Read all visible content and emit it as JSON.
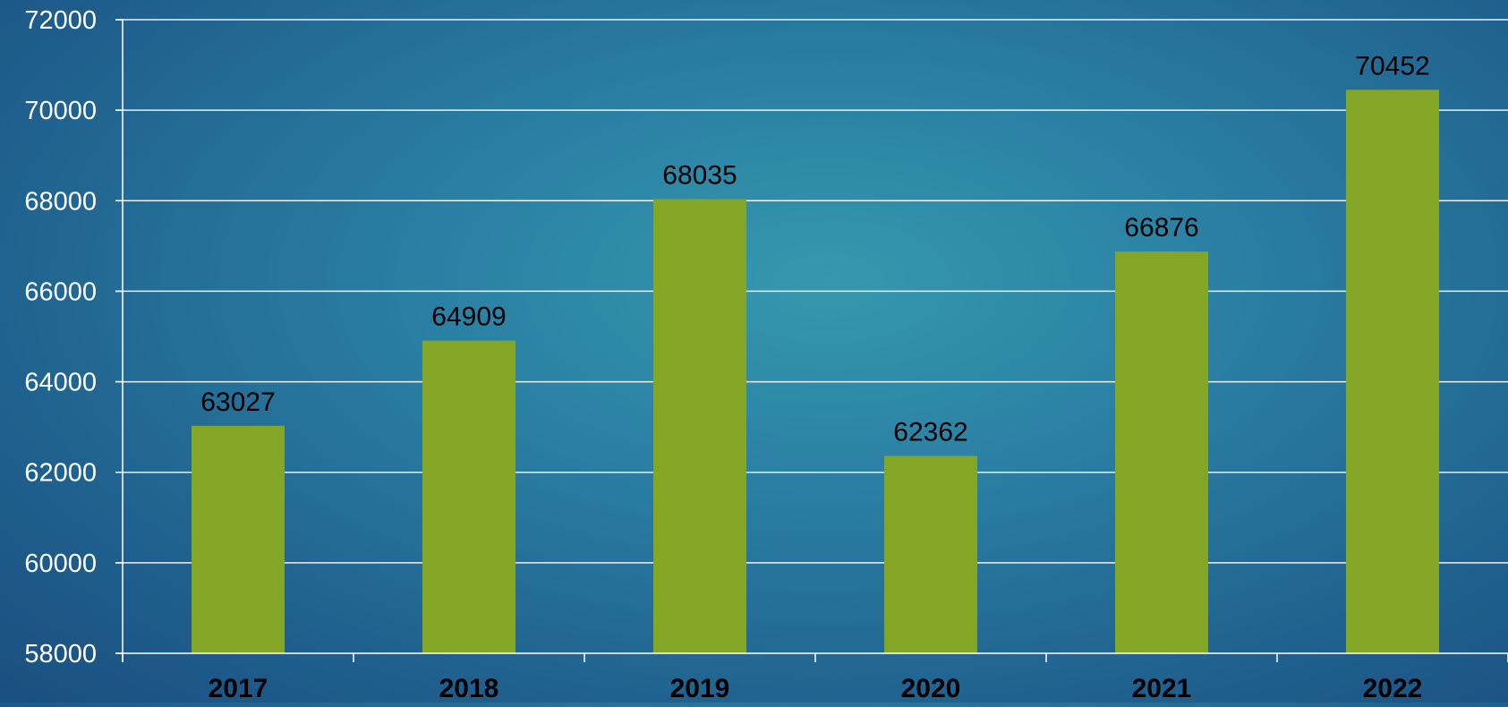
{
  "chart_data": {
    "type": "bar",
    "categories": [
      "2017",
      "2018",
      "2019",
      "2020",
      "2021",
      "2022"
    ],
    "values": [
      63027,
      64909,
      68035,
      62362,
      66876,
      70452
    ],
    "data_labels": [
      "63027",
      "64909",
      "68035",
      "62362",
      "66876",
      "70452"
    ],
    "title": "",
    "xlabel": "",
    "ylabel": "",
    "ylim": [
      58000,
      72000
    ],
    "yticks": [
      58000,
      60000,
      62000,
      64000,
      66000,
      68000,
      70000,
      72000
    ],
    "ytick_labels": [
      "58000",
      "60000",
      "62000",
      "64000",
      "66000",
      "68000",
      "70000",
      "72000"
    ],
    "grid": true,
    "legend": "none",
    "bar_color": "#84a626",
    "gridline_color": "#ffffff",
    "label_color": "#000000",
    "axis_text_color": "#ffffff"
  }
}
